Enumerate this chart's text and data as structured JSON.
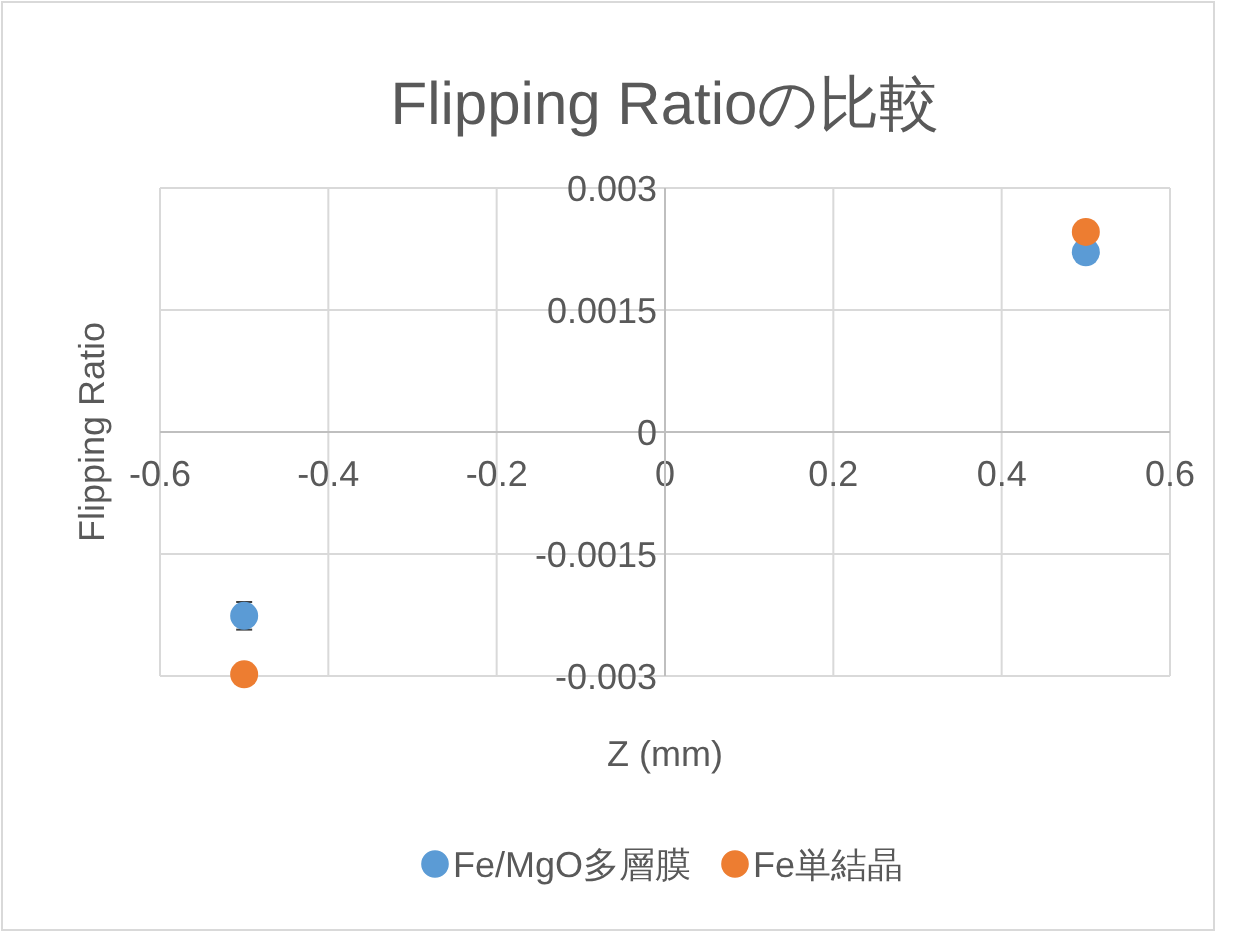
{
  "chart_data": {
    "type": "scatter",
    "title": "Flipping Ratioの比較",
    "xlabel": "Z (mm)",
    "ylabel": "Flipping Ratio",
    "xlim": [
      -0.6,
      0.6
    ],
    "xticks": [
      -0.6,
      -0.4,
      -0.2,
      0,
      0.2,
      0.4,
      0.6
    ],
    "ylim": [
      -0.003,
      0.003
    ],
    "yticks": [
      -0.003,
      -0.0015,
      0,
      0.0015,
      0.003
    ],
    "x": [
      -0.5,
      0.5
    ],
    "grid": true,
    "legend": "bottom",
    "marker": "circle",
    "series": [
      {
        "name": "Fe/MgO多層膜",
        "color": "#5b9bd5",
        "values": [
          -0.00226,
          0.00221
        ],
        "errors": [
          0.00017,
          0.0001
        ]
      },
      {
        "name": "Fe単結晶",
        "color": "#ed7d31",
        "values": [
          -0.00298,
          0.00246
        ]
      }
    ]
  }
}
